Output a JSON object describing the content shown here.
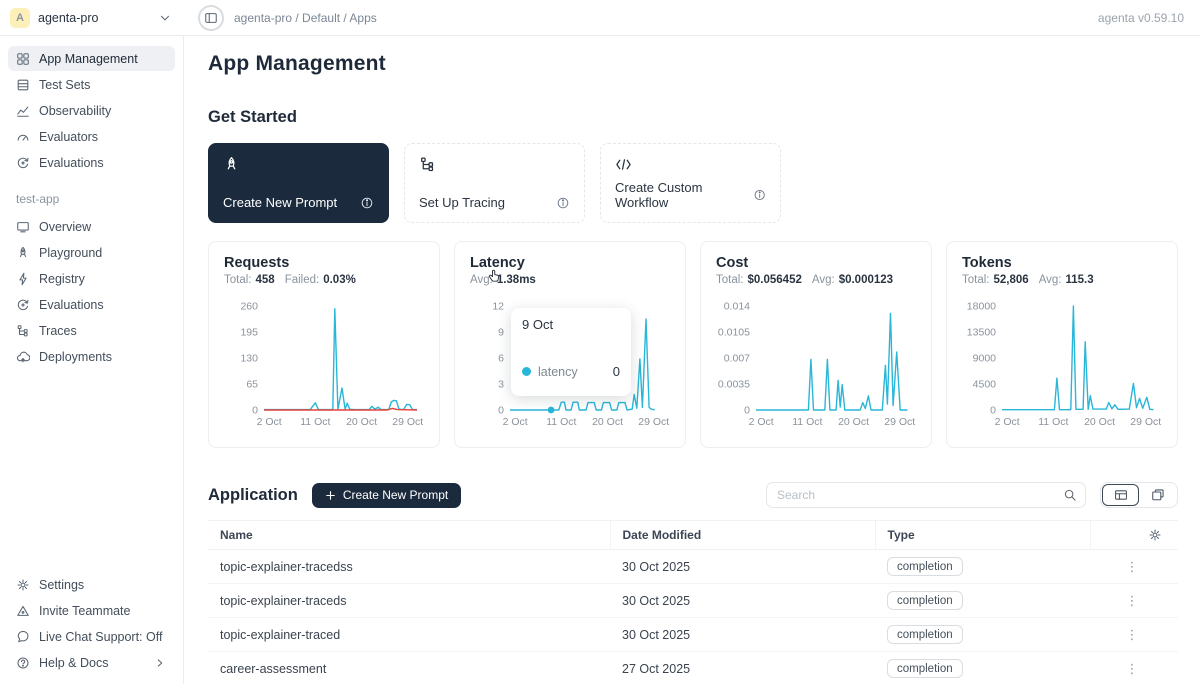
{
  "app": {
    "version_label": "agenta v0.59.10"
  },
  "topbar": {
    "avatar_letter": "A",
    "workspace": "agenta-pro",
    "breadcrumb": "agenta-pro / Default / Apps"
  },
  "sidebar": {
    "workspace_items": [
      {
        "label": "App Management",
        "icon": "grid-icon",
        "selected": true
      },
      {
        "label": "Test Sets",
        "icon": "test-sets-icon"
      },
      {
        "label": "Observability",
        "icon": "observability-icon"
      },
      {
        "label": "Evaluators",
        "icon": "gauge-icon"
      },
      {
        "label": "Evaluations",
        "icon": "evaluations-icon"
      }
    ],
    "app_section_label": "test-app",
    "app_items": [
      {
        "label": "Overview",
        "icon": "monitor-icon"
      },
      {
        "label": "Playground",
        "icon": "rocket-icon"
      },
      {
        "label": "Registry",
        "icon": "lightning-icon"
      },
      {
        "label": "Evaluations",
        "icon": "evaluations-icon"
      },
      {
        "label": "Traces",
        "icon": "trace-tree-icon"
      },
      {
        "label": "Deployments",
        "icon": "cloud-icon"
      }
    ],
    "footer_items": [
      {
        "label": "Settings",
        "icon": "gear-icon"
      },
      {
        "label": "Invite Teammate",
        "icon": "invite-icon"
      },
      {
        "label": "Live Chat Support: Off",
        "icon": "chat-icon"
      },
      {
        "label": "Help & Docs",
        "icon": "help-icon"
      }
    ]
  },
  "main": {
    "title": "App Management",
    "get_started": {
      "heading": "Get Started",
      "cards": [
        {
          "label": "Create New Prompt",
          "icon": "rocket-icon",
          "variant": "dark"
        },
        {
          "label": "Set Up Tracing",
          "icon": "trace-tree-icon",
          "variant": "light"
        },
        {
          "label": "Create Custom Workflow",
          "icon": "code-icon",
          "variant": "light"
        }
      ]
    },
    "application": {
      "heading": "Application",
      "create_button_label": "Create New Prompt",
      "search_placeholder": "Search",
      "table": {
        "columns": [
          "Name",
          "Date Modified",
          "Type"
        ],
        "rows": [
          {
            "name": "topic-explainer-tracedss",
            "date": "30 Oct 2025",
            "type": "completion"
          },
          {
            "name": "topic-explainer-traceds",
            "date": "30 Oct 2025",
            "type": "completion"
          },
          {
            "name": "topic-explainer-traced",
            "date": "30 Oct 2025",
            "type": "completion"
          },
          {
            "name": "career-assessment",
            "date": "27 Oct 2025",
            "type": "completion"
          }
        ]
      }
    }
  },
  "tooltip": {
    "date": "9 Oct",
    "series_label": "latency",
    "value": "0"
  },
  "colors": {
    "accent_cyan": "#29b6d8",
    "failed_red": "#e8413c",
    "dark_navy": "#1b2b3d"
  },
  "chart_data": [
    {
      "type": "line",
      "title": "Requests",
      "stats": [
        {
          "label": "Total:",
          "value": "458"
        },
        {
          "label": "Failed:",
          "value": "0.03%"
        }
      ],
      "x_domain": [
        1,
        31
      ],
      "x_ticks": [
        {
          "day": 2,
          "label": "2 Oct"
        },
        {
          "day": 11,
          "label": "11 Oct"
        },
        {
          "day": 20,
          "label": "20 Oct"
        },
        {
          "day": 29,
          "label": "29 Oct"
        }
      ],
      "y_tick_values": [
        0,
        65,
        130,
        195,
        260
      ],
      "y_tick_labels": [
        "0",
        "65",
        "130",
        "195",
        "260"
      ],
      "legend": [
        "requests",
        "failed"
      ],
      "series": [
        {
          "name": "requests",
          "color": "#29b6d8",
          "points": [
            [
              1,
              1
            ],
            [
              10,
              1
            ],
            [
              11,
              18
            ],
            [
              11.6,
              1
            ],
            [
              14.4,
              1
            ],
            [
              14.8,
              253
            ],
            [
              15.4,
              2
            ],
            [
              16.2,
              55
            ],
            [
              16.8,
              2
            ],
            [
              17.2,
              17
            ],
            [
              17.7,
              2
            ],
            [
              18.5,
              1
            ],
            [
              21.5,
              1
            ],
            [
              22,
              9
            ],
            [
              22.6,
              2
            ],
            [
              23.2,
              7
            ],
            [
              23.8,
              1
            ],
            [
              25.3,
              1
            ],
            [
              25.8,
              20
            ],
            [
              26.3,
              24
            ],
            [
              26.8,
              23
            ],
            [
              27.3,
              2
            ],
            [
              28.2,
              1
            ],
            [
              28.8,
              14
            ],
            [
              29.4,
              13
            ],
            [
              29.9,
              1
            ],
            [
              30.8,
              1
            ]
          ]
        },
        {
          "name": "failed",
          "color": "#e8413c",
          "points": [
            [
              1,
              0
            ],
            [
              25,
              0
            ],
            [
              26,
              4
            ],
            [
              27,
              1
            ],
            [
              30.8,
              0
            ]
          ]
        }
      ]
    },
    {
      "type": "line",
      "title": "Latency",
      "stats": [
        {
          "label": "Avg:",
          "value": "1.38ms"
        }
      ],
      "x_domain": [
        1,
        31
      ],
      "x_ticks": [
        {
          "day": 2,
          "label": "2 Oct"
        },
        {
          "day": 11,
          "label": "11 Oct"
        },
        {
          "day": 20,
          "label": "20 Oct"
        },
        {
          "day": 29,
          "label": "29 Oct"
        }
      ],
      "y_tick_values": [
        0,
        3,
        6,
        9,
        12
      ],
      "y_tick_labels": [
        "0",
        "3",
        "6",
        "9",
        "12"
      ],
      "legend": [
        "latency"
      ],
      "hover_dot": {
        "day": 9,
        "value": 0
      },
      "series": [
        {
          "name": "latency",
          "color": "#29b6d8",
          "points": [
            [
              1,
              0
            ],
            [
              10.5,
              0
            ],
            [
              11,
              0.9
            ],
            [
              11.6,
              0.9
            ],
            [
              11.9,
              0
            ],
            [
              12.9,
              0
            ],
            [
              13.3,
              0.9
            ],
            [
              14.2,
              0.9
            ],
            [
              14.5,
              0
            ],
            [
              15.8,
              0
            ],
            [
              16.2,
              0.85
            ],
            [
              17.4,
              0.85
            ],
            [
              17.8,
              0
            ],
            [
              18.8,
              0
            ],
            [
              19.2,
              0.85
            ],
            [
              20.4,
              0.85
            ],
            [
              20.8,
              0
            ],
            [
              21.8,
              0
            ],
            [
              22.2,
              0.85
            ],
            [
              23.4,
              0.85
            ],
            [
              23.8,
              0
            ],
            [
              24.8,
              0.1
            ],
            [
              25.2,
              1.8
            ],
            [
              25.7,
              0.2
            ],
            [
              26.3,
              5.9
            ],
            [
              26.8,
              0.3
            ],
            [
              27.5,
              10.5
            ],
            [
              28.1,
              0.3
            ],
            [
              28.5,
              0.1
            ],
            [
              29.2,
              0
            ]
          ]
        }
      ]
    },
    {
      "type": "line",
      "title": "Cost",
      "stats": [
        {
          "label": "Total:",
          "value": "$0.056452"
        },
        {
          "label": "Avg:",
          "value": "$0.000123"
        }
      ],
      "x_domain": [
        1,
        31
      ],
      "x_ticks": [
        {
          "day": 2,
          "label": "2 Oct"
        },
        {
          "day": 11,
          "label": "11 Oct"
        },
        {
          "day": 20,
          "label": "20 Oct"
        },
        {
          "day": 29,
          "label": "29 Oct"
        }
      ],
      "y_tick_values": [
        0,
        0.0035,
        0.007,
        0.0105,
        0.014
      ],
      "y_tick_labels": [
        "0",
        "0.0035",
        "0.007",
        "0.0105",
        "0.014"
      ],
      "legend": [
        "cost"
      ],
      "series": [
        {
          "name": "cost",
          "color": "#29b6d8",
          "points": [
            [
              1,
              0
            ],
            [
              11.2,
              0
            ],
            [
              11.7,
              0.0068
            ],
            [
              12.2,
              0
            ],
            [
              14.4,
              0
            ],
            [
              14.9,
              0.0068
            ],
            [
              15.4,
              0
            ],
            [
              16.6,
              0
            ],
            [
              17,
              0.004
            ],
            [
              17.4,
              0.0004
            ],
            [
              17.8,
              0.0034
            ],
            [
              18.3,
              0
            ],
            [
              21.3,
              0
            ],
            [
              21.8,
              0.001
            ],
            [
              22.3,
              0.0002
            ],
            [
              22.9,
              0.0019
            ],
            [
              23.4,
              0
            ],
            [
              25.6,
              0
            ],
            [
              26.2,
              0.006
            ],
            [
              26.6,
              0.0008
            ],
            [
              27.2,
              0.013
            ],
            [
              27.7,
              0.0006
            ],
            [
              28.4,
              0.0078
            ],
            [
              29.1,
              0
            ],
            [
              30.5,
              0
            ]
          ]
        }
      ]
    },
    {
      "type": "line",
      "title": "Tokens",
      "stats": [
        {
          "label": "Total:",
          "value": "52,806"
        },
        {
          "label": "Avg:",
          "value": "115.3"
        }
      ],
      "x_domain": [
        1,
        31
      ],
      "x_ticks": [
        {
          "day": 2,
          "label": "2 Oct"
        },
        {
          "day": 11,
          "label": "11 Oct"
        },
        {
          "day": 20,
          "label": "20 Oct"
        },
        {
          "day": 29,
          "label": "29 Oct"
        }
      ],
      "y_tick_values": [
        0,
        4500,
        9000,
        13500,
        18000
      ],
      "y_tick_labels": [
        "0",
        "4500",
        "9000",
        "13500",
        "18000"
      ],
      "legend": [
        "tokens"
      ],
      "series": [
        {
          "name": "tokens",
          "color": "#29b6d8",
          "points": [
            [
              1,
              60
            ],
            [
              11.2,
              60
            ],
            [
              11.7,
              5500
            ],
            [
              12.2,
              60
            ],
            [
              14.4,
              60
            ],
            [
              14.9,
              18000
            ],
            [
              15.4,
              120
            ],
            [
              16.8,
              120
            ],
            [
              17.2,
              11800
            ],
            [
              17.8,
              120
            ],
            [
              18.2,
              2500
            ],
            [
              18.7,
              160
            ],
            [
              21.3,
              160
            ],
            [
              21.8,
              1300
            ],
            [
              22.4,
              200
            ],
            [
              23,
              900
            ],
            [
              23.6,
              120
            ],
            [
              25.8,
              160
            ],
            [
              26.6,
              4600
            ],
            [
              27.2,
              400
            ],
            [
              27.8,
              2000
            ],
            [
              28.4,
              300
            ],
            [
              29.2,
              2200
            ],
            [
              29.8,
              120
            ],
            [
              30.5,
              60
            ]
          ]
        }
      ]
    }
  ]
}
